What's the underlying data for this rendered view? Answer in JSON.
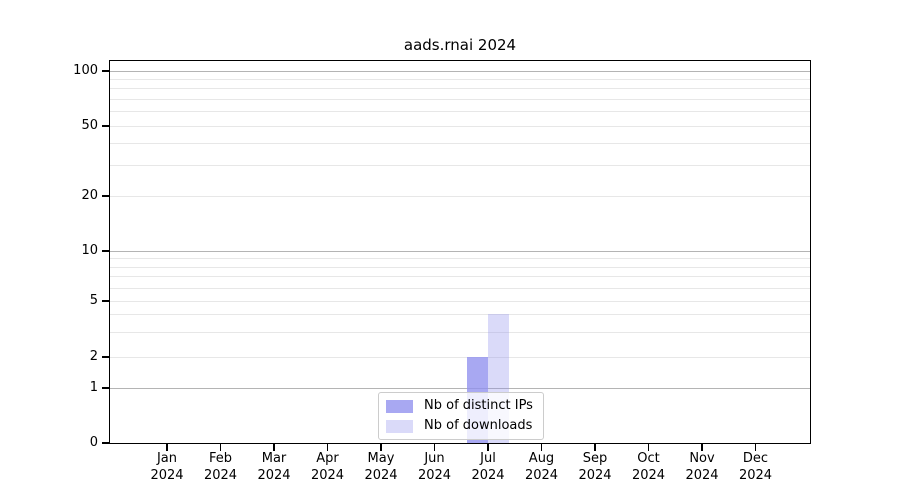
{
  "chart_data": {
    "type": "bar",
    "title": "aads.rnai 2024",
    "categories": [
      "Jan",
      "Feb",
      "Mar",
      "Apr",
      "May",
      "Jun",
      "Jul",
      "Aug",
      "Sep",
      "Oct",
      "Nov",
      "Dec"
    ],
    "year_label": "2024",
    "series": [
      {
        "name": "Nb of distinct IPs",
        "color": "#9090ee",
        "alpha": 0.78,
        "values": [
          0,
          0,
          0,
          0,
          0,
          0,
          2,
          0,
          0,
          0,
          0,
          0
        ]
      },
      {
        "name": "Nb of downloads",
        "color": "#9090ee",
        "alpha": 0.33,
        "values": [
          0,
          0,
          0,
          0,
          0,
          0,
          4,
          0,
          0,
          0,
          0,
          0
        ]
      }
    ],
    "y_axis": {
      "scale": "symlog",
      "ticks": [
        0,
        1,
        2,
        5,
        10,
        20,
        50,
        100
      ],
      "minor_gridlines": [
        3,
        4,
        6,
        7,
        8,
        9,
        30,
        40,
        60,
        70,
        80,
        90
      ],
      "range": [
        0,
        100
      ]
    },
    "x_axis": {
      "tick_label_line1": [
        "Jan",
        "Feb",
        "Mar",
        "Apr",
        "May",
        "Jun",
        "Jul",
        "Aug",
        "Sep",
        "Oct",
        "Nov",
        "Dec"
      ],
      "tick_label_line2": "2024"
    },
    "legend": {
      "position": "lower center",
      "entries": [
        "Nb of distinct IPs",
        "Nb of downloads"
      ]
    },
    "grid": {
      "horizontal_major": true,
      "horizontal_minor": true
    },
    "colors": {
      "bar_distinct_ips_rendered": "#acacf4",
      "bar_downloads_rendered": "#dcdcf9",
      "grid_major": "#b4b4b4",
      "grid_minor": "#e7e7e7",
      "axis": "#000000",
      "background": "#ffffff"
    }
  }
}
